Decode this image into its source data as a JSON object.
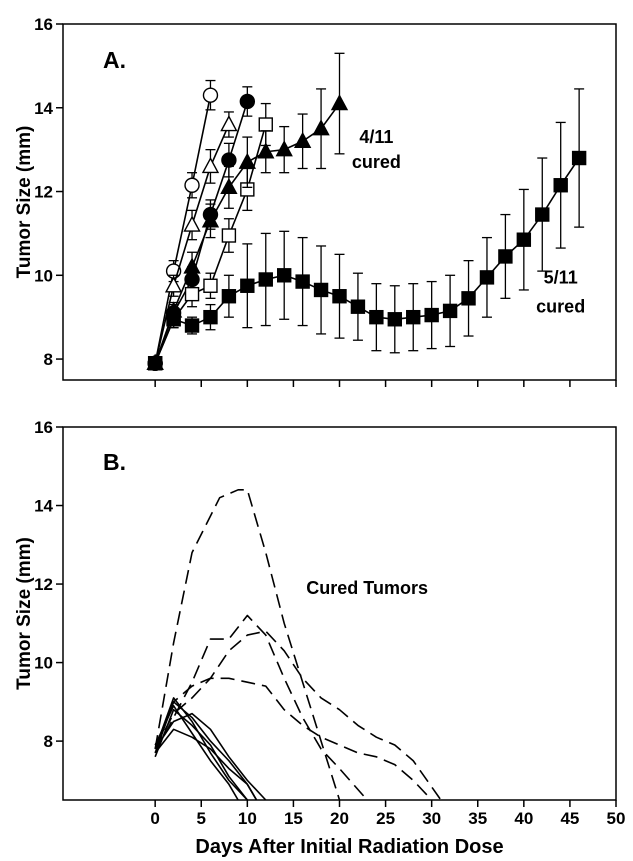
{
  "chart_data": [
    {
      "type": "line",
      "panel_label": "A.",
      "ylabel": "Tumor Size (mm)",
      "xlim": [
        -10,
        50
      ],
      "ylim": [
        7.5,
        16
      ],
      "yticks": [
        8,
        10,
        12,
        14,
        16
      ],
      "xticks": [
        0,
        5,
        10,
        15,
        20,
        25,
        30,
        35,
        40,
        45,
        50
      ],
      "annotations": [
        {
          "text": "4/11",
          "x": 24,
          "y": 13.3
        },
        {
          "text": "cured",
          "x": 24,
          "y": 12.7
        },
        {
          "text": "5/11",
          "x": 44,
          "y": 9.95
        },
        {
          "text": "cured",
          "x": 44,
          "y": 9.25
        }
      ],
      "series": [
        {
          "marker": "open-circle",
          "x": [
            0,
            2,
            4,
            6
          ],
          "y": [
            7.9,
            10.1,
            12.15,
            14.3
          ],
          "err": [
            0.1,
            0.25,
            0.3,
            0.35
          ]
        },
        {
          "marker": "open-triangle",
          "x": [
            0,
            2,
            4,
            6,
            8
          ],
          "y": [
            7.9,
            9.75,
            11.2,
            12.6,
            13.6
          ],
          "err": [
            0.1,
            0.25,
            0.35,
            0.4,
            0.3
          ]
        },
        {
          "marker": "filled-circle",
          "x": [
            0,
            2,
            4,
            6,
            8,
            10
          ],
          "y": [
            7.9,
            9.1,
            9.9,
            11.45,
            12.75,
            14.15
          ],
          "err": [
            0.1,
            0.2,
            0.3,
            0.35,
            0.4,
            0.35
          ]
        },
        {
          "marker": "open-square",
          "x": [
            0,
            2,
            4,
            6,
            8,
            10,
            12
          ],
          "y": [
            7.9,
            8.95,
            9.55,
            9.75,
            10.95,
            12.05,
            13.6
          ],
          "err": [
            0.1,
            0.2,
            0.3,
            0.3,
            0.4,
            0.5,
            0.5
          ]
        },
        {
          "marker": "filled-triangle",
          "x": [
            0,
            2,
            4,
            6,
            8,
            10,
            12,
            14,
            16,
            18,
            20
          ],
          "y": [
            7.9,
            9.15,
            10.2,
            11.3,
            12.1,
            12.7,
            12.95,
            13.0,
            13.2,
            13.5,
            14.1
          ],
          "err": [
            0.1,
            0.2,
            0.35,
            0.4,
            0.5,
            0.6,
            0.5,
            0.55,
            0.65,
            0.95,
            1.2
          ]
        },
        {
          "marker": "filled-square",
          "x": [
            0,
            2,
            4,
            6,
            8,
            10,
            12,
            14,
            16,
            18,
            20,
            22,
            24,
            26,
            28,
            30,
            32,
            34,
            36,
            38,
            40,
            42,
            44,
            46
          ],
          "y": [
            7.9,
            8.95,
            8.8,
            9.0,
            9.5,
            9.75,
            9.9,
            10.0,
            9.85,
            9.65,
            9.5,
            9.25,
            9.0,
            8.95,
            9.0,
            9.05,
            9.15,
            9.45,
            9.95,
            10.45,
            10.85,
            11.45,
            12.15,
            12.8
          ],
          "err": [
            0.1,
            0.2,
            0.2,
            0.3,
            0.5,
            1.0,
            1.1,
            1.05,
            1.05,
            1.05,
            1.0,
            0.8,
            0.8,
            0.8,
            0.8,
            0.8,
            0.85,
            0.9,
            0.95,
            1.0,
            1.2,
            1.35,
            1.5,
            1.65
          ]
        }
      ]
    },
    {
      "type": "line",
      "panel_label": "B.",
      "ylabel": "Tumor Size (mm)",
      "xlabel": "Days After Initial Radiation Dose",
      "xlim": [
        -10,
        50
      ],
      "ylim": [
        6.5,
        16
      ],
      "yticks": [
        8,
        10,
        12,
        14,
        16
      ],
      "xticks": [
        0,
        5,
        10,
        15,
        20,
        25,
        30,
        35,
        40,
        45,
        50
      ],
      "annotations": [
        {
          "text": "Cured Tumors",
          "x": 23,
          "y": 11.9
        }
      ],
      "series": [
        {
          "style": "dashed",
          "x": [
            0,
            2,
            4,
            7,
            9,
            10,
            12,
            14,
            16,
            18,
            20
          ],
          "y": [
            7.8,
            10.5,
            12.8,
            14.2,
            14.4,
            14.4,
            12.8,
            11.0,
            9.5,
            8.0,
            6.5
          ]
        },
        {
          "style": "dashed",
          "x": [
            0,
            2,
            4,
            6,
            8,
            10,
            12,
            14,
            16,
            18,
            20,
            23
          ],
          "y": [
            7.7,
            8.6,
            9.5,
            10.6,
            10.6,
            11.2,
            10.7,
            9.6,
            8.6,
            7.8,
            7.3,
            6.5
          ]
        },
        {
          "style": "dashed",
          "x": [
            0,
            2,
            4,
            6,
            8,
            10,
            12,
            14,
            16,
            18,
            20,
            22,
            24,
            26,
            28,
            31
          ],
          "y": [
            7.8,
            8.7,
            9.1,
            9.6,
            10.3,
            10.7,
            10.8,
            10.3,
            9.6,
            9.1,
            8.8,
            8.4,
            8.1,
            7.9,
            7.5,
            6.5
          ]
        },
        {
          "style": "dashed",
          "x": [
            0,
            2,
            4,
            6,
            8,
            10,
            12,
            14,
            16,
            18,
            20,
            22,
            24,
            26,
            28,
            30
          ],
          "y": [
            7.8,
            9.0,
            9.4,
            9.6,
            9.6,
            9.5,
            9.4,
            8.8,
            8.4,
            8.1,
            7.9,
            7.7,
            7.6,
            7.4,
            7.0,
            6.5
          ]
        },
        {
          "style": "solid",
          "x": [
            0,
            2,
            4,
            6,
            8,
            10,
            11
          ],
          "y": [
            7.7,
            8.3,
            8.1,
            7.8,
            7.3,
            6.9,
            6.5
          ]
        },
        {
          "style": "solid",
          "x": [
            0,
            2,
            4,
            6,
            8,
            10
          ],
          "y": [
            7.6,
            8.8,
            8.4,
            7.9,
            7.1,
            6.5
          ]
        },
        {
          "style": "solid",
          "x": [
            0,
            2,
            4,
            6,
            8,
            10
          ],
          "y": [
            7.8,
            9.1,
            8.5,
            7.7,
            7.0,
            6.5
          ]
        },
        {
          "style": "solid",
          "x": [
            0,
            2,
            4,
            6,
            8,
            9
          ],
          "y": [
            7.9,
            8.9,
            8.2,
            7.5,
            6.9,
            6.5
          ]
        },
        {
          "style": "solid",
          "x": [
            0,
            2,
            4,
            6,
            8,
            10,
            11
          ],
          "y": [
            7.7,
            9.0,
            8.6,
            8.0,
            7.5,
            6.9,
            6.5
          ]
        },
        {
          "style": "solid",
          "x": [
            0,
            2,
            4,
            6,
            8,
            10,
            12
          ],
          "y": [
            7.8,
            8.5,
            8.7,
            8.3,
            7.6,
            7.0,
            6.5
          ]
        }
      ]
    }
  ]
}
